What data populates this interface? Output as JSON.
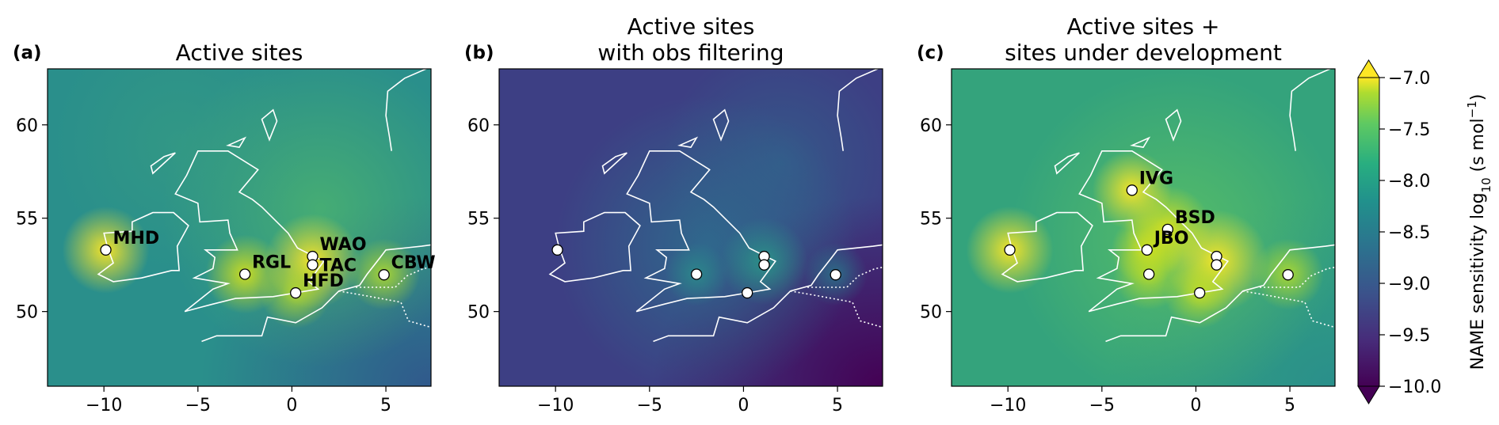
{
  "chart_data": [
    {
      "type": "scatter",
      "panel_label": "(a)",
      "title": [
        "Active sites"
      ],
      "x": [
        -9.9,
        -2.5,
        1.1,
        1.1,
        0.2,
        4.9
      ],
      "y": [
        53.3,
        52.0,
        52.95,
        52.5,
        51.0,
        51.97
      ],
      "point_labels": [
        "MHD",
        "RGL",
        "WAO",
        "TAC",
        "HFD",
        "CBW"
      ],
      "xlim": [
        -13,
        7.4
      ],
      "ylim": [
        46,
        63
      ],
      "xticks": [
        {
          "value": -10,
          "label": "−10"
        },
        {
          "value": -5,
          "label": "−5"
        },
        0,
        5
      ],
      "yticks": [
        50,
        55,
        60
      ]
    },
    {
      "type": "scatter",
      "panel_label": "(b)",
      "title": [
        "Active sites",
        "with obs filtering"
      ],
      "x": [
        -9.9,
        -2.5,
        1.1,
        1.1,
        0.2,
        4.9
      ],
      "y": [
        53.3,
        52.0,
        52.95,
        52.5,
        51.0,
        51.97
      ],
      "xlim": [
        -13,
        7.4
      ],
      "ylim": [
        46,
        63
      ],
      "xticks": [
        {
          "value": -10,
          "label": "−10"
        },
        {
          "value": -5,
          "label": "−5"
        },
        0,
        5
      ],
      "yticks": [
        50,
        55,
        60
      ]
    },
    {
      "type": "scatter",
      "panel_label": "(c)",
      "title": [
        "Active sites +",
        "sites under development"
      ],
      "x": [
        -9.9,
        -3.4,
        -1.5,
        -2.6,
        -2.5,
        1.1,
        1.1,
        0.2,
        4.9
      ],
      "y": [
        53.3,
        56.5,
        54.4,
        53.3,
        52.0,
        52.95,
        52.5,
        51.0,
        51.97
      ],
      "point_labels": [
        null,
        "IVG",
        "BSD",
        "JBO",
        null,
        null,
        null,
        null,
        null
      ],
      "xlim": [
        -13,
        7.4
      ],
      "ylim": [
        46,
        63
      ],
      "xticks": [
        {
          "value": -10,
          "label": "−10"
        },
        {
          "value": -5,
          "label": "−5"
        },
        0,
        5
      ],
      "yticks": [
        50,
        55,
        60
      ]
    }
  ],
  "colorbar": {
    "label": [
      "NAME sensitivity log",
      "10",
      " (s mol",
      "−1",
      ")"
    ],
    "lim": [
      -10,
      -7
    ],
    "ticks": [
      {
        "value": -7,
        "label": "−7.0"
      },
      {
        "value": -7.5,
        "label": "−7.5"
      },
      {
        "value": -8,
        "label": "−8.0"
      },
      {
        "value": -8.5,
        "label": "−8.5"
      },
      {
        "value": -9,
        "label": "−9.0"
      },
      {
        "value": -9.5,
        "label": "−9.5"
      },
      {
        "value": -10,
        "label": "−10.0"
      }
    ]
  }
}
